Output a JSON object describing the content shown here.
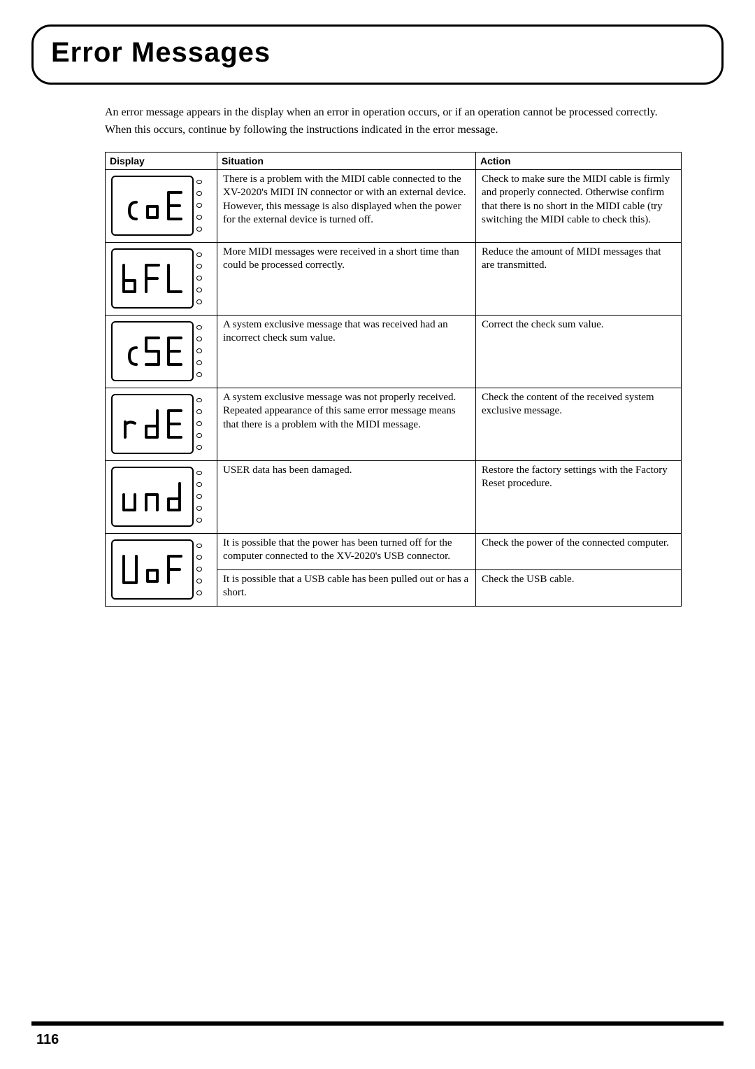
{
  "title": "Error Messages",
  "intro": "An error message appears in the display when an error in operation occurs, or if an operation cannot be processed correctly. When this occurs, continue by following the instructions indicated in the error message.",
  "headers": {
    "display": "Display",
    "situation": "Situation",
    "action": "Action"
  },
  "rows": [
    {
      "code": "coE",
      "situations": [
        {
          "text": "There is a problem with the MIDI cable connected to the XV-2020's MIDI IN connector or with an external device. However, this message is also displayed when the power for the external device is turned off.",
          "action": "Check to make sure the MIDI cable is firmly and properly connected. Otherwise confirm that there is no short in the MIDI cable (try switching the MIDI cable to check this)."
        }
      ]
    },
    {
      "code": "bFL",
      "situations": [
        {
          "text": "More MIDI messages were received in a short time than could be processed correctly.",
          "action": "Reduce the amount of MIDI messages that are transmitted."
        }
      ]
    },
    {
      "code": "cSE",
      "situations": [
        {
          "text": "A system exclusive message that was received had an incorrect check sum value.",
          "action": "Correct the check sum value."
        }
      ]
    },
    {
      "code": "rdE",
      "situations": [
        {
          "text": "A system exclusive message was not properly received. Repeated appearance of this same error message means that there is a problem with the MIDI message.",
          "action": "Check the content of the received system exclusive message."
        }
      ]
    },
    {
      "code": "und",
      "situations": [
        {
          "text": "USER data has been damaged.",
          "action": "Restore the factory settings with the Factory Reset procedure."
        }
      ]
    },
    {
      "code": "UoF",
      "situations": [
        {
          "text": "It is possible that the power has been turned off for the computer connected to the XV-2020's USB connector.",
          "action": "Check the power of the connected computer."
        },
        {
          "text": "It is possible that a USB cable has been pulled out or has a short.",
          "action": "Check the USB cable."
        }
      ]
    }
  ],
  "pageNumber": "116",
  "style": {
    "page_bg": "#ffffff",
    "border_color": "#000000",
    "title_font": "Arial",
    "title_size_pt": 30,
    "body_font": "Georgia",
    "body_size_pt": 12,
    "header_font": "Arial",
    "header_size_pt": 11,
    "seg_stroke": "#000000",
    "seg_stroke_width": 4,
    "dot_border": "#000000",
    "footer_bar_color": "#000000"
  }
}
